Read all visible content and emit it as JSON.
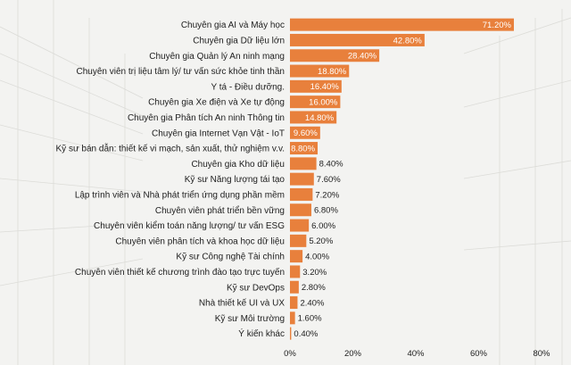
{
  "chart_data": {
    "type": "bar",
    "orientation": "horizontal",
    "categories": [
      "Chuyên gia AI và Máy học",
      "Chuyên gia Dữ liệu lớn",
      "Chuyên gia Quản lý An ninh mạng",
      "Chuyên viên trị liệu tâm lý/ tư vấn sức khỏe tinh thần",
      "Y tá - Điều dưỡng.",
      "Chuyên gia Xe điện và Xe tự động",
      "Chuyên gia Phân tích An ninh Thông tin",
      "Chuyên gia Internet Vạn Vật - IoT",
      "Kỹ sư bán dẫn: thiết kế vi mạch, sản xuất, thử nghiệm v.v.",
      "Chuyên gia Kho dữ liệu",
      "Kỹ sư Năng lượng tái tạo",
      "Lập trình viên và Nhà phát triển ứng dụng phần mềm",
      "Chuyên viên phát triển bền vững",
      "Chuyên viên kiểm toán năng lượng/ tư vấn ESG",
      "Chuyên viên phân tích và khoa học dữ liệu",
      "Kỹ sư Công nghệ Tài chính",
      "Chuyên viên thiết kế chương trình đào tạo trực tuyến",
      "Kỹ sư DevOps",
      "Nhà thiết kế UI và UX",
      "Kỹ sư Môi trường",
      "Ý kiến khác"
    ],
    "values": [
      71.2,
      42.8,
      28.4,
      18.8,
      16.4,
      16.0,
      14.8,
      9.6,
      8.8,
      8.4,
      7.6,
      7.2,
      6.8,
      6.0,
      5.2,
      4.0,
      3.2,
      2.8,
      2.4,
      1.6,
      0.4
    ],
    "value_labels": [
      "71.20%",
      "42.80%",
      "28.40%",
      "18.80%",
      "16.40%",
      "16.00%",
      "14.80%",
      "9.60%",
      "8.80%",
      "8.40%",
      "7.60%",
      "7.20%",
      "6.80%",
      "6.00%",
      "5.20%",
      "4.00%",
      "3.20%",
      "2.80%",
      "2.40%",
      "1.60%",
      "0.40%"
    ],
    "xlim": [
      0,
      80
    ],
    "xticks": [
      "0%",
      "20%",
      "40%",
      "60%",
      "80%"
    ],
    "title": "",
    "xlabel": "",
    "ylabel": "",
    "grid": false,
    "bar_color": "#e8803c"
  }
}
